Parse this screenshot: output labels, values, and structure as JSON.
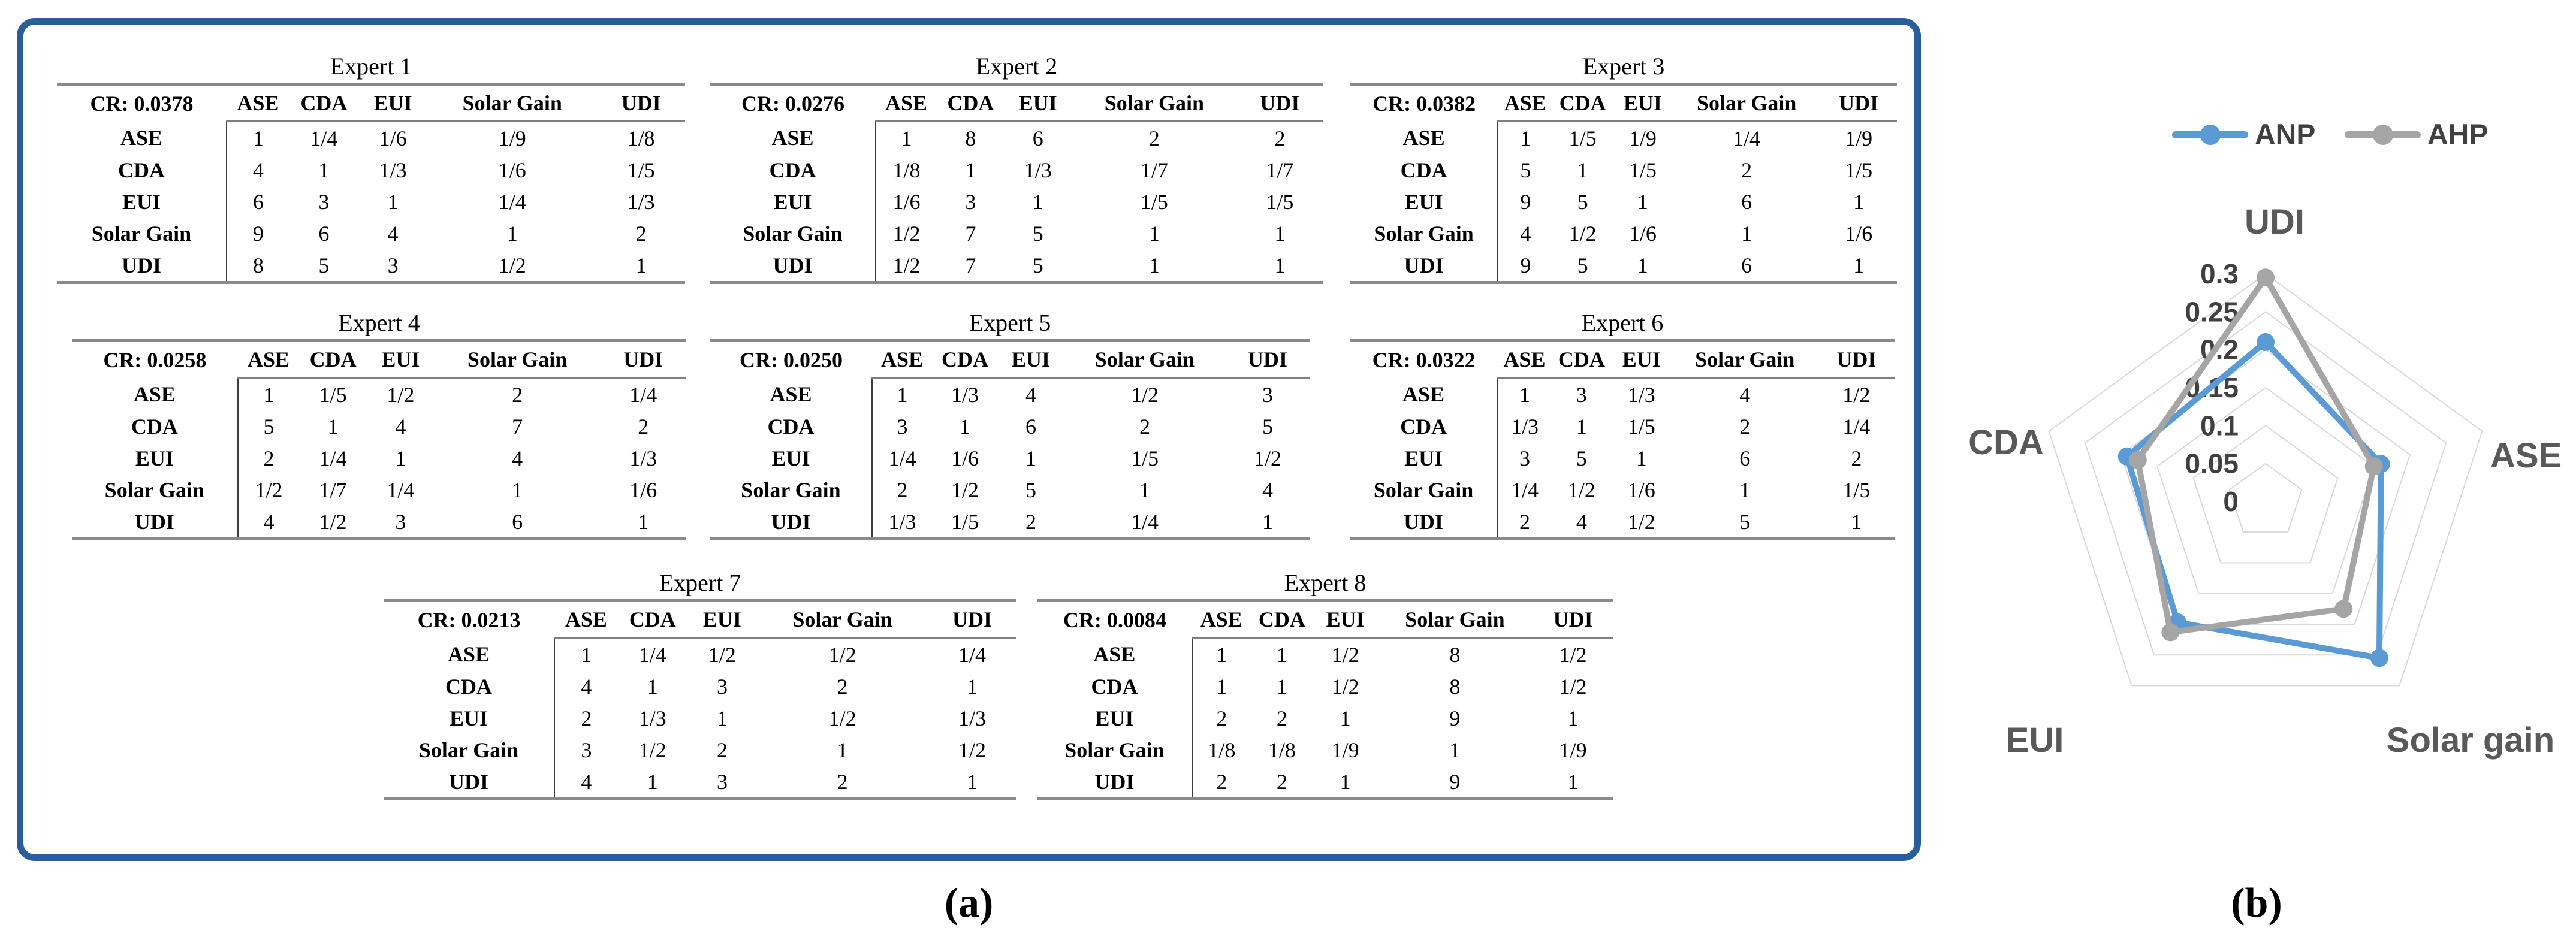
{
  "panel_a": {
    "caption": "(a)",
    "matrix_columns": [
      "ASE",
      "CDA",
      "EUI",
      "Solar Gain",
      "UDI"
    ],
    "experts": [
      {
        "title": "Expert 1",
        "cr": "CR: 0.0378",
        "rows": [
          {
            "label": "ASE",
            "values": [
              "1",
              "1/4",
              "1/6",
              "1/9",
              "1/8"
            ]
          },
          {
            "label": "CDA",
            "values": [
              "4",
              "1",
              "1/3",
              "1/6",
              "1/5"
            ]
          },
          {
            "label": "EUI",
            "values": [
              "6",
              "3",
              "1",
              "1/4",
              "1/3"
            ]
          },
          {
            "label": "Solar Gain",
            "values": [
              "9",
              "6",
              "4",
              "1",
              "2"
            ]
          },
          {
            "label": "UDI",
            "values": [
              "8",
              "5",
              "3",
              "1/2",
              "1"
            ]
          }
        ]
      },
      {
        "title": "Expert 2",
        "cr": "CR: 0.0276",
        "rows": [
          {
            "label": "ASE",
            "values": [
              "1",
              "8",
              "6",
              "2",
              "2"
            ]
          },
          {
            "label": "CDA",
            "values": [
              "1/8",
              "1",
              "1/3",
              "1/7",
              "1/7"
            ]
          },
          {
            "label": "EUI",
            "values": [
              "1/6",
              "3",
              "1",
              "1/5",
              "1/5"
            ]
          },
          {
            "label": "Solar Gain",
            "values": [
              "1/2",
              "7",
              "5",
              "1",
              "1"
            ]
          },
          {
            "label": "UDI",
            "values": [
              "1/2",
              "7",
              "5",
              "1",
              "1"
            ]
          }
        ]
      },
      {
        "title": "Expert 3",
        "cr": "CR: 0.0382",
        "rows": [
          {
            "label": "ASE",
            "values": [
              "1",
              "1/5",
              "1/9",
              "1/4",
              "1/9"
            ]
          },
          {
            "label": "CDA",
            "values": [
              "5",
              "1",
              "1/5",
              "2",
              "1/5"
            ]
          },
          {
            "label": "EUI",
            "values": [
              "9",
              "5",
              "1",
              "6",
              "1"
            ]
          },
          {
            "label": "Solar Gain",
            "values": [
              "4",
              "1/2",
              "1/6",
              "1",
              "1/6"
            ]
          },
          {
            "label": "UDI",
            "values": [
              "9",
              "5",
              "1",
              "6",
              "1"
            ]
          }
        ]
      },
      {
        "title": "Expert 4",
        "cr": "CR: 0.0258",
        "rows": [
          {
            "label": "ASE",
            "values": [
              "1",
              "1/5",
              "1/2",
              "2",
              "1/4"
            ]
          },
          {
            "label": "CDA",
            "values": [
              "5",
              "1",
              "4",
              "7",
              "2"
            ]
          },
          {
            "label": "EUI",
            "values": [
              "2",
              "1/4",
              "1",
              "4",
              "1/3"
            ]
          },
          {
            "label": "Solar Gain",
            "values": [
              "1/2",
              "1/7",
              "1/4",
              "1",
              "1/6"
            ]
          },
          {
            "label": "UDI",
            "values": [
              "4",
              "1/2",
              "3",
              "6",
              "1"
            ]
          }
        ]
      },
      {
        "title": "Expert 5",
        "cr": "CR: 0.0250",
        "rows": [
          {
            "label": "ASE",
            "values": [
              "1",
              "1/3",
              "4",
              "1/2",
              "3"
            ]
          },
          {
            "label": "CDA",
            "values": [
              "3",
              "1",
              "6",
              "2",
              "5"
            ]
          },
          {
            "label": "EUI",
            "values": [
              "1/4",
              "1/6",
              "1",
              "1/5",
              "1/2"
            ]
          },
          {
            "label": "Solar Gain",
            "values": [
              "2",
              "1/2",
              "5",
              "1",
              "4"
            ]
          },
          {
            "label": "UDI",
            "values": [
              "1/3",
              "1/5",
              "2",
              "1/4",
              "1"
            ]
          }
        ]
      },
      {
        "title": "Expert 6",
        "cr": "CR: 0.0322",
        "rows": [
          {
            "label": "ASE",
            "values": [
              "1",
              "3",
              "1/3",
              "4",
              "1/2"
            ]
          },
          {
            "label": "CDA",
            "values": [
              "1/3",
              "1",
              "1/5",
              "2",
              "1/4"
            ]
          },
          {
            "label": "EUI",
            "values": [
              "3",
              "5",
              "1",
              "6",
              "2"
            ]
          },
          {
            "label": "Solar Gain",
            "values": [
              "1/4",
              "1/2",
              "1/6",
              "1",
              "1/5"
            ]
          },
          {
            "label": "UDI",
            "values": [
              "2",
              "4",
              "1/2",
              "5",
              "1"
            ]
          }
        ]
      },
      {
        "title": "Expert 7",
        "cr": "CR: 0.0213",
        "rows": [
          {
            "label": "ASE",
            "values": [
              "1",
              "1/4",
              "1/2",
              "1/2",
              "1/4"
            ]
          },
          {
            "label": "CDA",
            "values": [
              "4",
              "1",
              "3",
              "2",
              "1"
            ]
          },
          {
            "label": "EUI",
            "values": [
              "2",
              "1/3",
              "1",
              "1/2",
              "1/3"
            ]
          },
          {
            "label": "Solar Gain",
            "values": [
              "3",
              "1/2",
              "2",
              "1",
              "1/2"
            ]
          },
          {
            "label": "UDI",
            "values": [
              "4",
              "1",
              "3",
              "2",
              "1"
            ]
          }
        ]
      },
      {
        "title": "Expert 8",
        "cr": "CR: 0.0084",
        "rows": [
          {
            "label": "ASE",
            "values": [
              "1",
              "1",
              "1/2",
              "8",
              "1/2"
            ]
          },
          {
            "label": "CDA",
            "values": [
              "1",
              "1",
              "1/2",
              "8",
              "1/2"
            ]
          },
          {
            "label": "EUI",
            "values": [
              "2",
              "2",
              "1",
              "9",
              "1"
            ]
          },
          {
            "label": "Solar Gain",
            "values": [
              "1/8",
              "1/8",
              "1/9",
              "1",
              "1/9"
            ]
          },
          {
            "label": "UDI",
            "values": [
              "2",
              "2",
              "1",
              "9",
              "1"
            ]
          }
        ]
      }
    ]
  },
  "panel_b": {
    "caption": "(b)"
  },
  "chart_data": {
    "type": "radar",
    "categories": [
      "UDI",
      "ASE",
      "Solar gain",
      "EUI",
      "CDA"
    ],
    "series": [
      {
        "name": "ANP",
        "color": "#5B9BD5",
        "values": [
          0.21,
          0.16,
          0.255,
          0.197,
          0.192
        ]
      },
      {
        "name": "AHP",
        "color": "#A5A5A5",
        "values": [
          0.295,
          0.15,
          0.175,
          0.213,
          0.177
        ]
      }
    ],
    "rmax": 0.3,
    "tick_values": [
      0,
      0.05,
      0.1,
      0.15,
      0.2,
      0.25,
      0.3
    ],
    "tick_labels": [
      "0",
      "0.05",
      "0.1",
      "0.15",
      "0.2",
      "0.25",
      "0.3"
    ],
    "grid": true,
    "grid_color": "#D9D9D9",
    "legend_position": "top"
  }
}
